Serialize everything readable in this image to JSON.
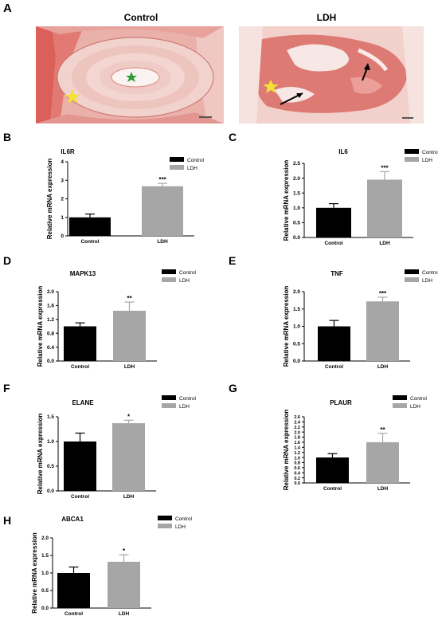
{
  "figure": {
    "panel_a": {
      "letter": "A",
      "left_title": "Control",
      "right_title": "LDH"
    }
  },
  "colors": {
    "control": "#000000",
    "ldh": "#a6a6a6",
    "tissue_bg": "#e9a19b",
    "tissue_deep": "#d9524c",
    "tissue_light": "#f3d4cf",
    "marker_yellow": "#f4e03a",
    "marker_green": "#2f9a3c"
  },
  "chart_data": [
    {
      "panel": "B",
      "type": "bar",
      "title": "IL6R",
      "categories": [
        "Control",
        "LDH"
      ],
      "series": [
        {
          "name": "Control",
          "value": 1.0,
          "error": 0.18
        },
        {
          "name": "LDH",
          "value": 2.68,
          "error": 0.15
        }
      ],
      "significance": "***",
      "ylabel": "Relative mRNA expression",
      "ylim": [
        0,
        4
      ],
      "yticks": [
        "0",
        "1",
        "2",
        "3",
        "4"
      ],
      "yvals": [
        0,
        1,
        2,
        3,
        4
      ],
      "legend": [
        "Control",
        "LDH"
      ]
    },
    {
      "panel": "C",
      "type": "bar",
      "title": "IL6",
      "categories": [
        "Control",
        "LDH"
      ],
      "series": [
        {
          "name": "Control",
          "value": 1.0,
          "error": 0.14
        },
        {
          "name": "LDH",
          "value": 1.95,
          "error": 0.27
        }
      ],
      "significance": "***",
      "ylabel": "Relative mRNA expression",
      "ylim": [
        0,
        2.5
      ],
      "yticks": [
        "0.0",
        "0.5",
        "1.0",
        "1.5",
        "2.0",
        "2.5"
      ],
      "yvals": [
        0,
        0.5,
        1.0,
        1.5,
        2.0,
        2.5
      ],
      "legend": [
        "Control",
        "LDH"
      ]
    },
    {
      "panel": "D",
      "type": "bar",
      "title": "MAPK13",
      "categories": [
        "Control",
        "LDH"
      ],
      "series": [
        {
          "name": "Control",
          "value": 1.0,
          "error": 0.1
        },
        {
          "name": "LDH",
          "value": 1.45,
          "error": 0.25
        }
      ],
      "significance": "**",
      "ylabel": "Relative mRNA expression",
      "ylim": [
        0,
        2.0
      ],
      "yticks": [
        "0.0",
        "0.4",
        "0.8",
        "1.2",
        "1.6",
        "2.0"
      ],
      "yvals": [
        0,
        0.4,
        0.8,
        1.2,
        1.6,
        2.0
      ],
      "legend": [
        "Control",
        "LDH"
      ]
    },
    {
      "panel": "E",
      "type": "bar",
      "title": "TNF",
      "categories": [
        "Control",
        "LDH"
      ],
      "series": [
        {
          "name": "Control",
          "value": 1.0,
          "error": 0.17
        },
        {
          "name": "LDH",
          "value": 1.72,
          "error": 0.12
        }
      ],
      "significance": "***",
      "ylabel": "Relative mRNA expression",
      "ylim": [
        0,
        2.0
      ],
      "yticks": [
        "0.0",
        "0.5",
        "1.0",
        "1.5",
        "2.0"
      ],
      "yvals": [
        0,
        0.5,
        1.0,
        1.5,
        2.0
      ],
      "legend": [
        "Control",
        "LDH"
      ]
    },
    {
      "panel": "F",
      "type": "bar",
      "title": "ELANE",
      "categories": [
        "Control",
        "LDH"
      ],
      "series": [
        {
          "name": "Control",
          "value": 1.0,
          "error": 0.17
        },
        {
          "name": "LDH",
          "value": 1.37,
          "error": 0.06
        }
      ],
      "significance": "*",
      "ylabel": "Relative mRNA expression",
      "ylim": [
        0,
        1.5
      ],
      "yticks": [
        "0.0",
        "0.5",
        "1.0",
        "1.5"
      ],
      "yvals": [
        0,
        0.5,
        1.0,
        1.5
      ],
      "legend": [
        "Control",
        "LDH"
      ]
    },
    {
      "panel": "G",
      "type": "bar",
      "title": "PLAUR",
      "categories": [
        "Control",
        "LDH"
      ],
      "series": [
        {
          "name": "Control",
          "value": 1.0,
          "error": 0.15
        },
        {
          "name": "LDH",
          "value": 1.6,
          "error": 0.35
        }
      ],
      "significance": "**",
      "ylabel": "Relative mRNA expression",
      "ylim": [
        0,
        2.6
      ],
      "yticks": [
        "0.0",
        "0.2",
        "0.4",
        "0.6",
        "0.8",
        "1.0",
        "1.2",
        "1.4",
        "1.6",
        "1.8",
        "2.0",
        "2.2",
        "2.4",
        "2.6"
      ],
      "yvals": [
        0,
        0.2,
        0.4,
        0.6,
        0.8,
        1.0,
        1.2,
        1.4,
        1.6,
        1.8,
        2.0,
        2.2,
        2.4,
        2.6
      ],
      "legend": [
        "Control",
        "LDH"
      ]
    },
    {
      "panel": "H",
      "type": "bar",
      "title": "ABCA1",
      "categories": [
        "Control",
        "LDH"
      ],
      "series": [
        {
          "name": "Control",
          "value": 1.0,
          "error": 0.17
        },
        {
          "name": "LDH",
          "value": 1.32,
          "error": 0.2
        }
      ],
      "significance": "*",
      "ylabel": "Relative mRNA expression",
      "ylim": [
        0,
        2.0
      ],
      "yticks": [
        "0.0",
        "0.5",
        "1.0",
        "1.5",
        "2.0"
      ],
      "yvals": [
        0,
        0.5,
        1.0,
        1.5,
        2.0
      ],
      "legend": [
        "Control",
        "LDH"
      ]
    }
  ]
}
